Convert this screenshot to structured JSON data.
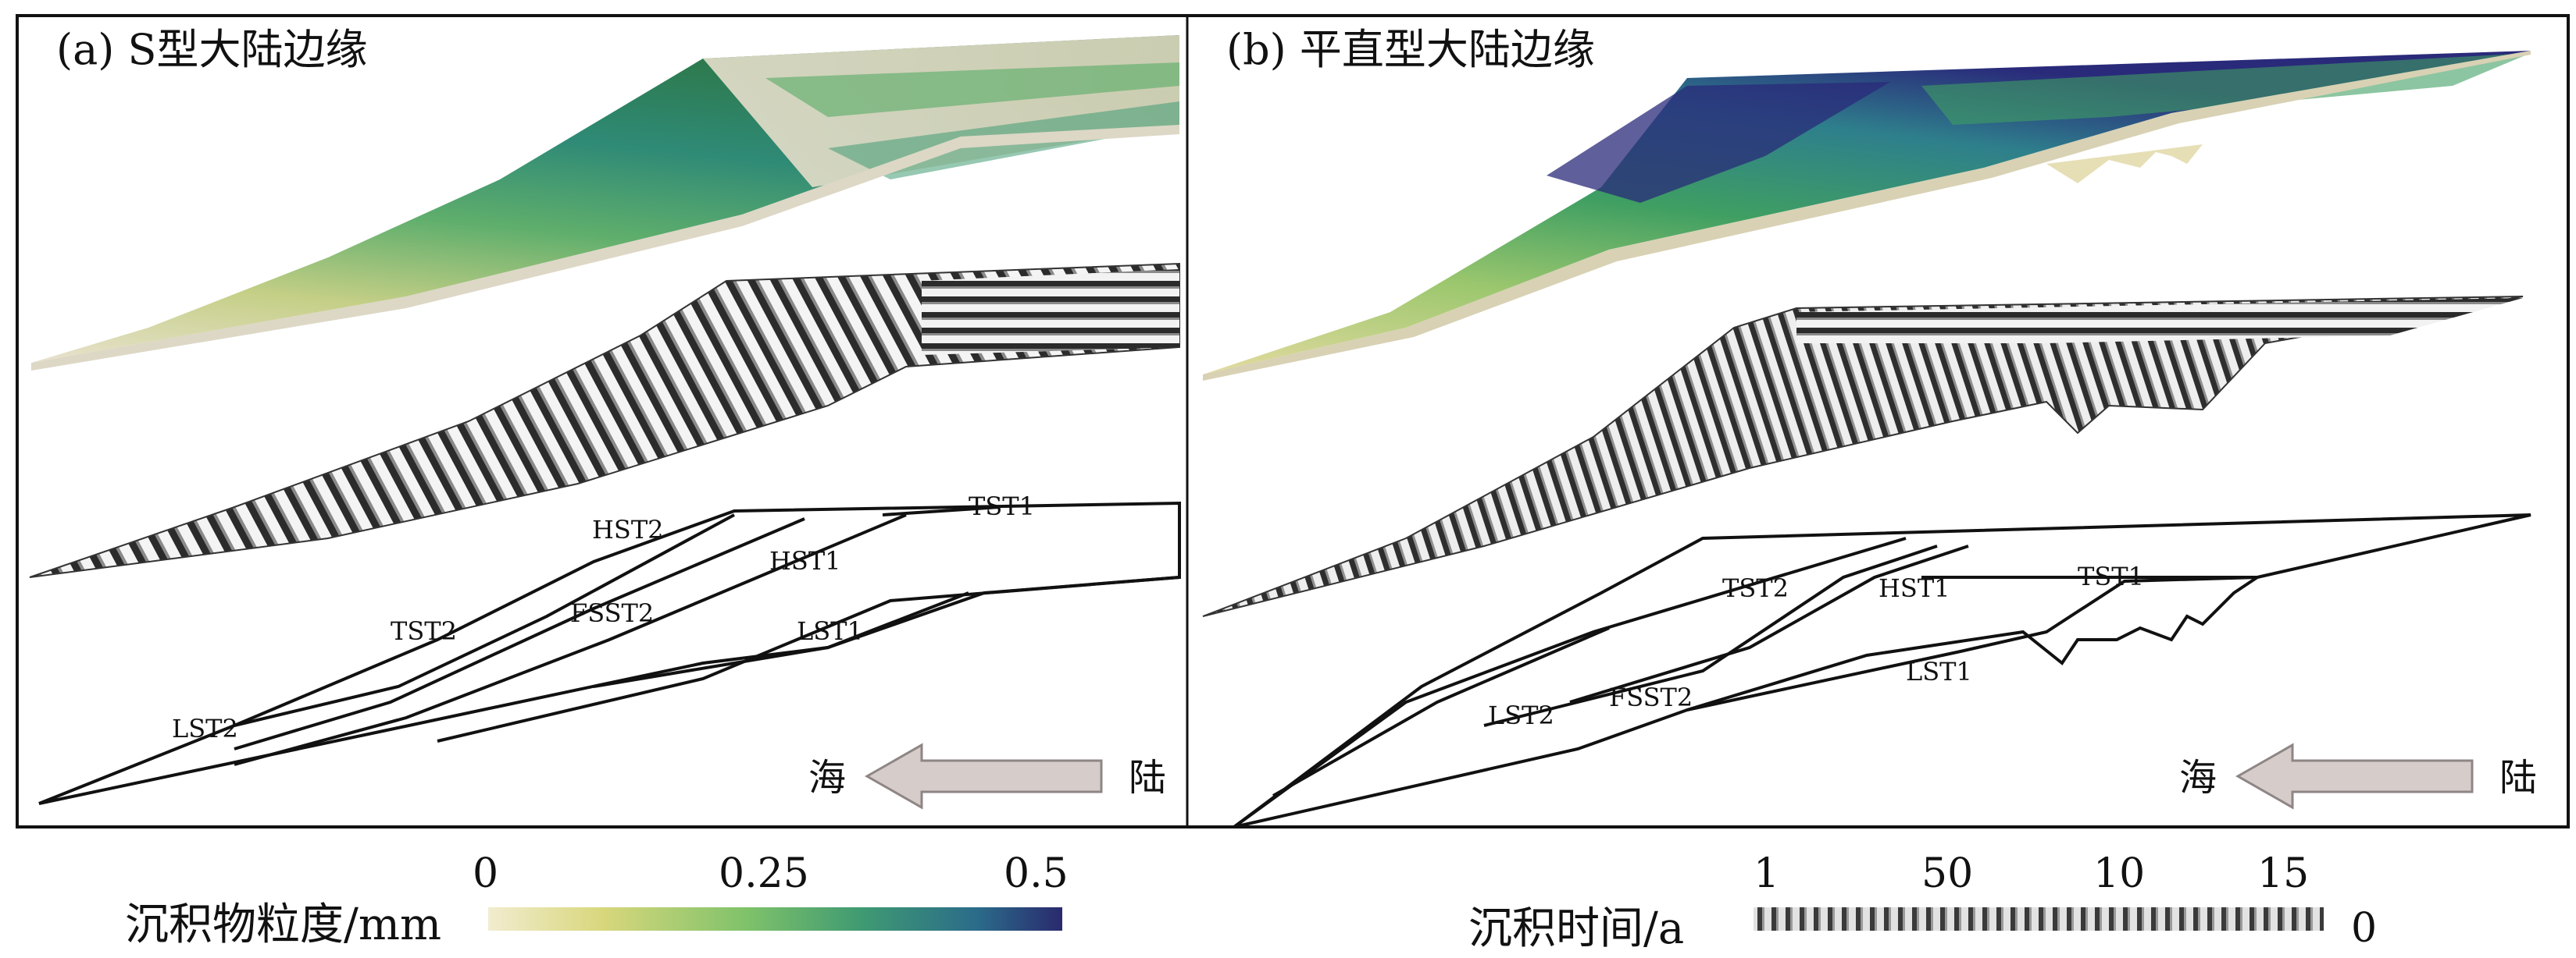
{
  "panels": {
    "a": {
      "title": "(a) S型大陆边缘",
      "labels": [
        "HST2",
        "TST1",
        "HST1",
        "TST2",
        "FSST2",
        "LST1",
        "LST2"
      ],
      "direction": {
        "sea": "海",
        "land": "陆"
      }
    },
    "b": {
      "title": "(b) 平直型大陆边缘",
      "labels": [
        "TST2",
        "HST1",
        "TST1",
        "LST2",
        "FSST2",
        "LST1"
      ],
      "direction": {
        "sea": "海",
        "land": "陆"
      }
    }
  },
  "grain_legend": {
    "label": "沉积物粒度/mm",
    "ticks": [
      "0",
      "0.25",
      "0.5"
    ],
    "colors": [
      "#f2eccf",
      "#d8d77c",
      "#7fc26a",
      "#3f9a72",
      "#2b6c8a",
      "#2a2a6e"
    ]
  },
  "time_legend": {
    "label": "沉积时间/a",
    "ticks": [
      "1",
      "50",
      "10",
      "15"
    ],
    "end_tick": "0"
  }
}
